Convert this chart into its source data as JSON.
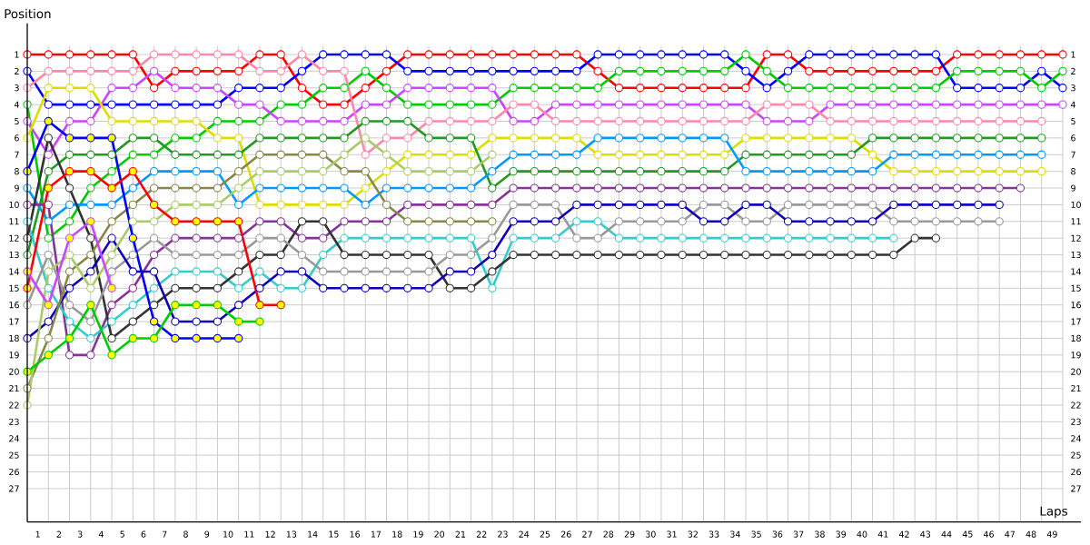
{
  "chart_data": {
    "type": "line",
    "xlabel": "Laps",
    "ylabel": "Position",
    "x": [
      0,
      1,
      2,
      3,
      4,
      5,
      6,
      7,
      8,
      9,
      10,
      11,
      12,
      13,
      14,
      15,
      16,
      17,
      18,
      19,
      20,
      21,
      22,
      23,
      24,
      25,
      26,
      27,
      28,
      29,
      30,
      31,
      32,
      33,
      34,
      35,
      36,
      37,
      38,
      39,
      40,
      41,
      42,
      43,
      44,
      45,
      46,
      47,
      48,
      49
    ],
    "xlim": [
      0,
      49
    ],
    "ylim": [
      29,
      0.5
    ],
    "y2lim": [
      29,
      0.5
    ],
    "xticks": [
      {
        "value": 0.5,
        "label": "1"
      },
      {
        "value": 1,
        "label": null
      },
      {
        "value": 1.5,
        "label": "2"
      },
      {
        "value": 2,
        "label": null
      },
      {
        "value": 2.5,
        "label": "3"
      },
      {
        "value": 3,
        "label": null
      },
      {
        "value": 3.5,
        "label": "4"
      },
      {
        "value": 4,
        "label": null
      },
      {
        "value": 4.5,
        "label": "5"
      },
      {
        "value": 5,
        "label": null
      },
      {
        "value": 5.5,
        "label": "6"
      },
      {
        "value": 6,
        "label": null
      },
      {
        "value": 6.5,
        "label": "7"
      },
      {
        "value": 7,
        "label": null
      },
      {
        "value": 7.5,
        "label": "8"
      },
      {
        "value": 8,
        "label": null
      },
      {
        "value": 8.5,
        "label": "9"
      },
      {
        "value": 9,
        "label": null
      },
      {
        "value": 9.5,
        "label": "10"
      },
      {
        "value": 10,
        "label": null
      },
      {
        "value": 10.5,
        "label": "11"
      },
      {
        "value": 11,
        "label": null
      },
      {
        "value": 11.5,
        "label": "12"
      },
      {
        "value": 12,
        "label": null
      },
      {
        "value": 12.5,
        "label": "13"
      },
      {
        "value": 13,
        "label": null
      },
      {
        "value": 13.5,
        "label": "14"
      },
      {
        "value": 14,
        "label": null
      },
      {
        "value": 14.5,
        "label": "15"
      },
      {
        "value": 15,
        "label": null
      },
      {
        "value": 15.5,
        "label": "16"
      },
      {
        "value": 16,
        "label": null
      },
      {
        "value": 16.5,
        "label": "17"
      },
      {
        "value": 17,
        "label": null
      },
      {
        "value": 17.5,
        "label": "18"
      },
      {
        "value": 18,
        "label": null
      },
      {
        "value": 18.5,
        "label": "19"
      },
      {
        "value": 19,
        "label": null
      },
      {
        "value": 19.5,
        "label": "20"
      },
      {
        "value": 20,
        "label": null
      },
      {
        "value": 20.5,
        "label": "21"
      },
      {
        "value": 21,
        "label": null
      },
      {
        "value": 21.5,
        "label": "22"
      },
      {
        "value": 22,
        "label": null
      },
      {
        "value": 22.5,
        "label": "23"
      },
      {
        "value": 23,
        "label": null
      },
      {
        "value": 23.5,
        "label": "24"
      },
      {
        "value": 24,
        "label": null
      },
      {
        "value": 24.5,
        "label": "25"
      },
      {
        "value": 25,
        "label": null
      },
      {
        "value": 25.5,
        "label": "26"
      },
      {
        "value": 26,
        "label": null
      },
      {
        "value": 26.5,
        "label": "27"
      },
      {
        "value": 27,
        "label": null
      },
      {
        "value": 27.5,
        "label": "28"
      },
      {
        "value": 28,
        "label": null
      },
      {
        "value": 28.5,
        "label": "29"
      },
      {
        "value": 29,
        "label": null
      },
      {
        "value": 29.5,
        "label": "30"
      },
      {
        "value": 30,
        "label": null
      },
      {
        "value": 30.5,
        "label": "31"
      },
      {
        "value": 31,
        "label": null
      },
      {
        "value": 31.5,
        "label": "32"
      },
      {
        "value": 32,
        "label": null
      },
      {
        "value": 32.5,
        "label": "33"
      },
      {
        "value": 33,
        "label": null
      },
      {
        "value": 33.5,
        "label": "34"
      },
      {
        "value": 34,
        "label": null
      },
      {
        "value": 34.5,
        "label": "35"
      },
      {
        "value": 35,
        "label": null
      },
      {
        "value": 35.5,
        "label": "36"
      },
      {
        "value": 36,
        "label": null
      },
      {
        "value": 36.5,
        "label": "37"
      },
      {
        "value": 37,
        "label": null
      },
      {
        "value": 37.5,
        "label": "38"
      },
      {
        "value": 38,
        "label": null
      },
      {
        "value": 38.5,
        "label": "39"
      },
      {
        "value": 39,
        "label": null
      },
      {
        "value": 39.5,
        "label": "40"
      },
      {
        "value": 40,
        "label": null
      },
      {
        "value": 40.5,
        "label": "41"
      },
      {
        "value": 41,
        "label": null
      },
      {
        "value": 41.5,
        "label": "42"
      },
      {
        "value": 42,
        "label": null
      },
      {
        "value": 42.5,
        "label": "43"
      },
      {
        "value": 43,
        "label": null
      },
      {
        "value": 43.5,
        "label": "44"
      },
      {
        "value": 44,
        "label": null
      },
      {
        "value": 44.5,
        "label": "45"
      },
      {
        "value": 45,
        "label": null
      },
      {
        "value": 45.5,
        "label": "46"
      },
      {
        "value": 46,
        "label": null
      },
      {
        "value": 46.5,
        "label": "47"
      },
      {
        "value": 47,
        "label": null
      },
      {
        "value": 47.5,
        "label": "48"
      },
      {
        "value": 48,
        "label": null
      },
      {
        "value": 48.5,
        "label": "49"
      },
      {
        "value": 49,
        "label": null
      }
    ],
    "yticks": [
      1,
      2,
      3,
      4,
      5,
      6,
      7,
      8,
      9,
      10,
      11,
      12,
      13,
      14,
      15,
      16,
      17,
      18,
      19,
      20,
      21,
      22,
      23,
      24,
      25,
      26,
      27
    ],
    "y2ticks": [
      1,
      2,
      3,
      4,
      5,
      6,
      7,
      8,
      9,
      10,
      11,
      12,
      13,
      14,
      15,
      16,
      17,
      18,
      19,
      20,
      21,
      22,
      23,
      24,
      25,
      26,
      27
    ],
    "grid": true,
    "marker": "circle",
    "series": [
      {
        "color": "#ff0000",
        "values": [
          1,
          1,
          1,
          1,
          1,
          1,
          3,
          2,
          2,
          2,
          2,
          1,
          1,
          3,
          4,
          4,
          3,
          2,
          1,
          1,
          1,
          1,
          1,
          1,
          1,
          1,
          1,
          2,
          3,
          3,
          3,
          3,
          3,
          3,
          3,
          1,
          1,
          2,
          2,
          2,
          2,
          2,
          2,
          2,
          1,
          1,
          1,
          1,
          1,
          1
        ]
      },
      {
        "color": "#0000ff",
        "values": [
          2,
          4,
          4,
          4,
          4,
          4,
          4,
          4,
          4,
          4,
          3,
          3,
          3,
          2,
          1,
          1,
          1,
          1,
          2,
          2,
          2,
          2,
          2,
          2,
          2,
          2,
          2,
          1,
          1,
          1,
          1,
          1,
          1,
          1,
          2,
          3,
          2,
          1,
          1,
          1,
          1,
          1,
          1,
          1,
          3,
          3,
          3,
          3,
          2,
          3
        ]
      },
      {
        "color": "#00cc00",
        "values": [
          4,
          12,
          11,
          9,
          8,
          7,
          7,
          6,
          6,
          5,
          5,
          5,
          4,
          4,
          3,
          3,
          2,
          3,
          4,
          4,
          4,
          4,
          4,
          3,
          3,
          3,
          3,
          3,
          2,
          2,
          2,
          2,
          2,
          2,
          1,
          2,
          3,
          3,
          3,
          3,
          3,
          3,
          3,
          3,
          2,
          2,
          2,
          2,
          3,
          2
        ]
      },
      {
        "color": "#cc44ff",
        "values": [
          5,
          7,
          5,
          5,
          3,
          3,
          2,
          3,
          3,
          3,
          4,
          4,
          5,
          5,
          5,
          5,
          4,
          4,
          3,
          3,
          3,
          3,
          3,
          5,
          5,
          4,
          4,
          4,
          4,
          4,
          4,
          4,
          4,
          4,
          4,
          5,
          5,
          5,
          4,
          4,
          4,
          4,
          4,
          4,
          4,
          4,
          4,
          4,
          4,
          4
        ]
      },
      {
        "color": "#ff88aa",
        "values": [
          3,
          2,
          2,
          2,
          2,
          2,
          1,
          1,
          1,
          1,
          1,
          2,
          2,
          1,
          2,
          2,
          7,
          6,
          6,
          5,
          5,
          5,
          5,
          4,
          4,
          5,
          5,
          5,
          5,
          5,
          5,
          5,
          5,
          5,
          5,
          4,
          4,
          4,
          5,
          5,
          5,
          5,
          5,
          5,
          5,
          5,
          5,
          5,
          5,
          null
        ]
      },
      {
        "color": "#dddd00",
        "values": [
          6,
          3,
          3,
          3,
          5,
          5,
          5,
          5,
          5,
          6,
          6,
          10,
          10,
          10,
          10,
          10,
          9,
          8,
          7,
          7,
          7,
          7,
          6,
          6,
          6,
          6,
          6,
          7,
          7,
          7,
          7,
          7,
          7,
          7,
          6,
          6,
          6,
          6,
          6,
          6,
          7,
          8,
          8,
          8,
          8,
          8,
          8,
          8,
          8,
          null
        ]
      },
      {
        "color": "#229922",
        "values": [
          13,
          8,
          7,
          7,
          7,
          6,
          6,
          7,
          7,
          7,
          7,
          6,
          6,
          6,
          6,
          6,
          5,
          5,
          5,
          6,
          6,
          6,
          9,
          8,
          8,
          8,
          8,
          8,
          8,
          8,
          8,
          8,
          8,
          8,
          7,
          7,
          7,
          7,
          7,
          7,
          6,
          6,
          6,
          6,
          6,
          6,
          6,
          6,
          6,
          null
        ]
      },
      {
        "color": "#0099ff",
        "values": [
          9,
          11,
          10,
          10,
          10,
          9,
          8,
          8,
          8,
          8,
          10,
          9,
          9,
          9,
          9,
          9,
          10,
          9,
          9,
          9,
          9,
          9,
          8,
          7,
          7,
          7,
          7,
          6,
          6,
          6,
          6,
          6,
          6,
          6,
          8,
          8,
          8,
          8,
          8,
          8,
          8,
          7,
          7,
          7,
          7,
          7,
          7,
          7,
          7,
          null
        ]
      },
      {
        "color": "#883399",
        "values": [
          10,
          10,
          19,
          19,
          16,
          15,
          13,
          12,
          12,
          12,
          12,
          11,
          11,
          12,
          12,
          11,
          11,
          11,
          10,
          10,
          10,
          10,
          10,
          9,
          9,
          9,
          9,
          9,
          9,
          9,
          9,
          9,
          9,
          9,
          9,
          9,
          9,
          9,
          9,
          9,
          9,
          9,
          9,
          9,
          9,
          9,
          9,
          9,
          null,
          null
        ]
      },
      {
        "color": "#33cccc",
        "values": [
          11,
          15,
          17,
          18,
          17,
          16,
          15,
          14,
          14,
          14,
          15,
          14,
          15,
          15,
          13,
          12,
          12,
          12,
          12,
          12,
          12,
          12,
          15,
          12,
          12,
          12,
          11,
          11,
          12,
          12,
          12,
          12,
          12,
          12,
          12,
          12,
          12,
          12,
          12,
          12,
          12,
          12,
          null,
          null,
          null,
          null,
          null,
          null,
          null,
          null
        ]
      },
      {
        "color": "#333333",
        "values": [
          12,
          6,
          9,
          12,
          18,
          17,
          16,
          15,
          15,
          15,
          14,
          13,
          13,
          11,
          11,
          13,
          13,
          13,
          13,
          13,
          15,
          15,
          14,
          13,
          13,
          13,
          13,
          13,
          13,
          13,
          13,
          13,
          13,
          13,
          13,
          13,
          13,
          13,
          13,
          13,
          13,
          13,
          12,
          12,
          null,
          null,
          null,
          null,
          null,
          null
        ]
      },
      {
        "color": "#999999",
        "values": [
          16,
          13,
          16,
          17,
          14,
          13,
          12,
          13,
          13,
          13,
          13,
          12,
          12,
          13,
          14,
          14,
          14,
          14,
          14,
          14,
          13,
          13,
          12,
          10,
          10,
          10,
          12,
          12,
          11,
          11,
          11,
          11,
          10,
          10,
          11,
          11,
          10,
          10,
          10,
          10,
          10,
          11,
          11,
          11,
          11,
          11,
          11,
          null,
          null,
          null
        ]
      },
      {
        "color": "#1100bb",
        "values": [
          18,
          17,
          15,
          14,
          12,
          14,
          14,
          17,
          17,
          17,
          16,
          15,
          14,
          14,
          15,
          15,
          15,
          15,
          15,
          15,
          14,
          14,
          13,
          11,
          11,
          11,
          10,
          10,
          10,
          10,
          10,
          10,
          11,
          11,
          10,
          10,
          11,
          11,
          11,
          11,
          11,
          10,
          10,
          10,
          10,
          10,
          10,
          null,
          null,
          null
        ]
      },
      {
        "color": "#888844",
        "values": [
          21,
          18,
          14,
          13,
          11,
          10,
          9,
          9,
          9,
          9,
          8,
          7,
          7,
          7,
          7,
          8,
          8,
          10,
          11,
          11,
          11,
          11,
          11,
          null,
          null,
          null,
          null,
          null,
          null,
          null,
          null,
          null,
          null,
          null,
          null,
          null,
          null,
          null,
          null,
          null,
          null,
          null,
          null,
          null,
          null,
          null,
          null,
          null,
          null,
          null
        ]
      },
      {
        "color": "#aacc66",
        "values": [
          22,
          14,
          13,
          15,
          13,
          11,
          11,
          10,
          10,
          10,
          9,
          8,
          8,
          8,
          8,
          7,
          6,
          7,
          8,
          8,
          8,
          8,
          7,
          null,
          null,
          null,
          null,
          null,
          null,
          null,
          null,
          null,
          null,
          null,
          null,
          null,
          null,
          null,
          null,
          null,
          null,
          null,
          null,
          null,
          null,
          null,
          null,
          null,
          null,
          null
        ]
      },
      {
        "color": "#0000ff",
        "values": [
          8,
          5,
          6,
          6,
          6,
          12,
          17,
          18,
          18,
          18,
          18,
          null,
          null,
          null,
          null,
          null,
          null,
          null,
          null,
          null,
          null,
          null,
          null,
          null,
          null,
          null,
          null,
          null,
          null,
          null,
          null,
          null,
          null,
          null,
          null,
          null,
          null,
          null,
          null,
          null,
          null,
          null,
          null,
          null,
          null,
          null,
          null,
          null,
          null,
          null
        ],
        "colors": [
          "#ffff00",
          "#ffff00",
          "#ffff00",
          "#ffff00",
          "#ffff00",
          "#ffff00",
          "#ffff00",
          "#ffff00",
          "#ffff00",
          "#ffff00",
          "#ffff00",
          null,
          null,
          null,
          null,
          null,
          null,
          null,
          null,
          null,
          null,
          null,
          null,
          null,
          null,
          null,
          null,
          null,
          null,
          null,
          null,
          null,
          null,
          null,
          null,
          null,
          null,
          null,
          null,
          null,
          null,
          null,
          null,
          null,
          null,
          null,
          null,
          null,
          null,
          null
        ]
      },
      {
        "color": "#00cc00",
        "values": [
          20,
          19,
          18,
          16,
          19,
          18,
          18,
          16,
          16,
          16,
          17,
          17,
          null,
          null,
          null,
          null,
          null,
          null,
          null,
          null,
          null,
          null,
          null,
          null,
          null,
          null,
          null,
          null,
          null,
          null,
          null,
          null,
          null,
          null,
          null,
          null,
          null,
          null,
          null,
          null,
          null,
          null,
          null,
          null,
          null,
          null,
          null,
          null,
          null,
          null
        ],
        "colors": [
          "#ffff00",
          "#ffff00",
          "#ffff00",
          "#ffff00",
          "#ffff00",
          "#ffff00",
          "#ffff00",
          "#ffff00",
          "#ffff00",
          "#ffff00",
          "#ffff00",
          "#ffff00",
          null,
          null,
          null,
          null,
          null,
          null,
          null,
          null,
          null,
          null,
          null,
          null,
          null,
          null,
          null,
          null,
          null,
          null,
          null,
          null,
          null,
          null,
          null,
          null,
          null,
          null,
          null,
          null,
          null,
          null,
          null,
          null,
          null,
          null,
          null,
          null,
          null,
          null
        ]
      },
      {
        "color": "#ff0000",
        "values": [
          15,
          9,
          8,
          8,
          9,
          8,
          10,
          11,
          11,
          11,
          11,
          16,
          16,
          null,
          null,
          null,
          null,
          null,
          null,
          null,
          null,
          null,
          null,
          null,
          null,
          null,
          null,
          null,
          null,
          null,
          null,
          null,
          null,
          null,
          null,
          null,
          null,
          null,
          null,
          null,
          null,
          null,
          null,
          null,
          null,
          null,
          null,
          null,
          null,
          null
        ],
        "colors": [
          "#ffff00",
          "#ffff00",
          "#ffff00",
          "#ffff00",
          "#ffff00",
          "#ffff00",
          "#ffff00",
          "#ffff00",
          "#ffff00",
          "#ffff00",
          "#ffff00",
          "#ffff00",
          "#ffff00",
          null,
          null,
          null,
          null,
          null,
          null,
          null,
          null,
          null,
          null,
          null,
          null,
          null,
          null,
          null,
          null,
          null,
          null,
          null,
          null,
          null,
          null,
          null,
          null,
          null,
          null,
          null,
          null,
          null,
          null,
          null,
          null,
          null,
          null,
          null,
          null,
          null
        ]
      },
      {
        "color": "#cc44ff",
        "values": [
          14,
          16,
          12,
          11,
          15,
          null,
          null,
          null,
          null,
          null,
          null,
          null,
          null,
          null,
          null,
          null,
          null,
          null,
          null,
          null,
          null,
          null,
          null,
          null,
          null,
          null,
          null,
          null,
          null,
          null,
          null,
          null,
          null,
          null,
          null,
          null,
          null,
          null,
          null,
          null,
          null,
          null,
          null,
          null,
          null,
          null,
          null,
          null,
          null,
          null
        ],
        "colors": [
          "#ffff00",
          "#ffff00",
          "#ffff00",
          "#ffff00",
          "#ffff00",
          null,
          null,
          null,
          null,
          null,
          null,
          null,
          null,
          null,
          null,
          null,
          null,
          null,
          null,
          null,
          null,
          null,
          null,
          null,
          null,
          null,
          null,
          null,
          null,
          null,
          null,
          null,
          null,
          null,
          null,
          null,
          null,
          null,
          null,
          null,
          null,
          null,
          null,
          null,
          null,
          null,
          null,
          null,
          null,
          null
        ]
      }
    ]
  }
}
